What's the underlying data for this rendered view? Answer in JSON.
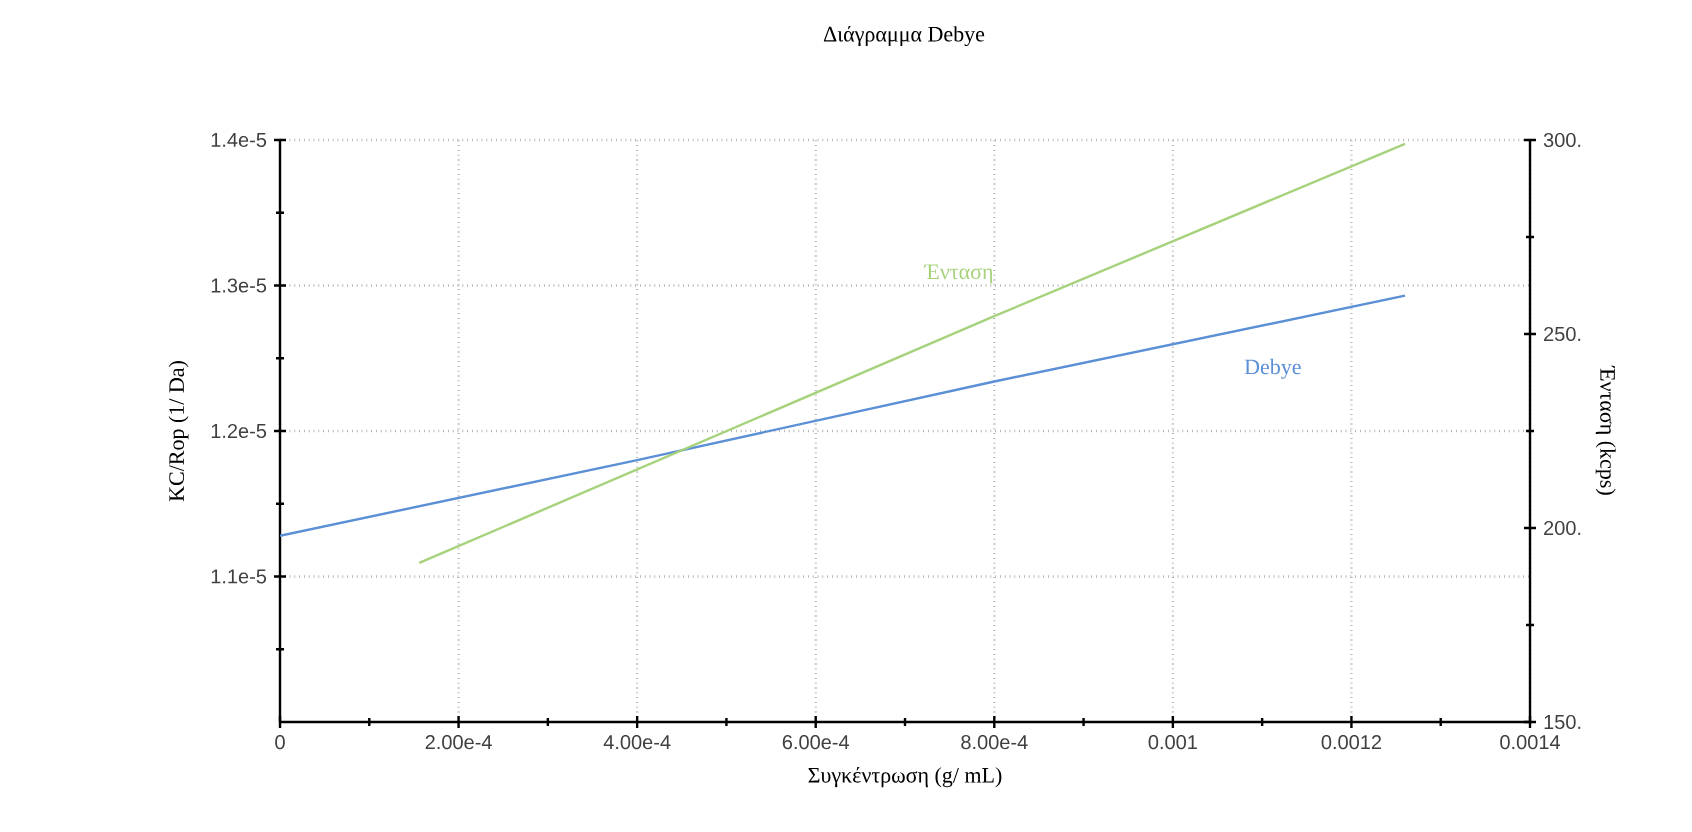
{
  "chart_data": {
    "type": "line",
    "title": "Διάγραμμα Debye",
    "xlabel": "Συγκέντρωση (g/ mL)",
    "ylabel": "KC/Rop (1/ Da)",
    "y2label": "Ένταση (kcps)",
    "xlim": [
      0,
      0.0014
    ],
    "xticks": [
      0,
      {
        "value": 0.0001,
        "label": null
      },
      {
        "value": 0.0002,
        "label": "2.00e-4"
      },
      {
        "value": 0.0003,
        "label": null
      },
      {
        "value": 0.0004,
        "label": "4.00e-4"
      },
      {
        "value": 0.0005,
        "label": null
      },
      {
        "value": 0.0006,
        "label": "6.00e-4"
      },
      {
        "value": 0.0007,
        "label": null
      },
      {
        "value": 0.0008,
        "label": "8.00e-4"
      },
      {
        "value": 0.0009,
        "label": null
      },
      0.001,
      {
        "value": 0.0011,
        "label": null
      },
      0.0012,
      {
        "value": 0.0013,
        "label": null
      },
      0.0014
    ],
    "ylim": [
      1e-05,
      1.4e-05
    ],
    "yticks": [
      {
        "value": 1.05e-05,
        "label": null
      },
      {
        "value": 1.1e-05,
        "label": "1.1e-5"
      },
      {
        "value": 1.15e-05,
        "label": null
      },
      {
        "value": 1.2e-05,
        "label": "1.2e-5"
      },
      {
        "value": 1.25e-05,
        "label": null
      },
      {
        "value": 1.3e-05,
        "label": "1.3e-5"
      },
      {
        "value": 1.35e-05,
        "label": null
      },
      {
        "value": 1.4e-05,
        "label": "1.4e-5"
      }
    ],
    "y2lim": [
      150,
      300
    ],
    "y2ticks": [
      {
        "value": 150,
        "label": "150."
      },
      {
        "value": 175,
        "label": null
      },
      {
        "value": 200,
        "label": "200."
      },
      {
        "value": 225,
        "label": null
      },
      {
        "value": 250,
        "label": "250."
      },
      {
        "value": 275,
        "label": null
      },
      {
        "value": 300,
        "label": "300."
      }
    ],
    "grid": true,
    "series": [
      {
        "name": "Debye",
        "color": "#5b8fd6",
        "x": [
          0,
          0.0004,
          0.0008,
          0.00126
        ],
        "values": [
          1.128e-05,
          1.18e-05,
          1.234e-05,
          1.293e-05
        ]
      },
      {
        "name": "Ένταση",
        "color": "#a6d27c",
        "axis": "y2",
        "x": [
          0.000156,
          0.0008,
          0.00126
        ],
        "values": [
          191,
          254.6,
          299
        ]
      }
    ]
  }
}
